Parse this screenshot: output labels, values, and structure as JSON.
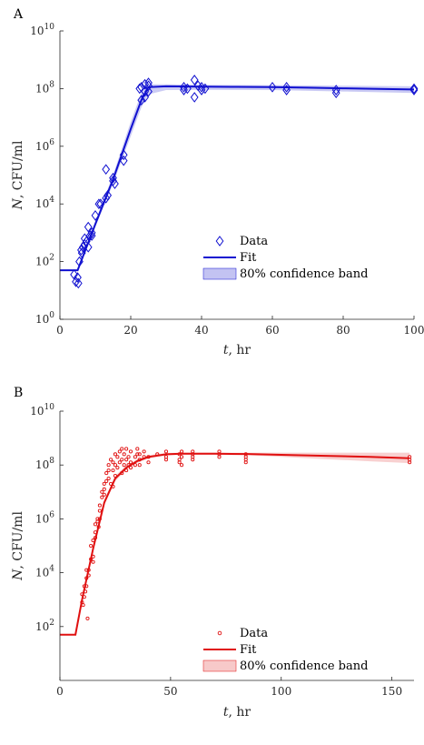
{
  "chart_data": [
    {
      "panel": "A",
      "type": "scatter",
      "color": "#1010d0",
      "band_color": "#b9b9f0",
      "marker": "diamond",
      "xlabel_var": "t",
      "xlabel_unit": ", hr",
      "ylabel_var": "N",
      "ylabel_unit": ", CFU/ml",
      "xlim": [
        0,
        100
      ],
      "ylim_log10": [
        0,
        10
      ],
      "xticks": [
        0,
        20,
        40,
        60,
        80,
        100
      ],
      "yticks_log10": [
        0,
        2,
        4,
        6,
        8,
        10
      ],
      "ytick_labels": [
        {
          "base": "10",
          "exp": "0"
        },
        {
          "base": "10",
          "exp": "2"
        },
        {
          "base": "10",
          "exp": "4"
        },
        {
          "base": "10",
          "exp": "6"
        },
        {
          "base": "10",
          "exp": "8"
        },
        {
          "base": "10",
          "exp": "10"
        }
      ],
      "legend": {
        "data": "Data",
        "fit": "Fit",
        "band": "80% confidence band",
        "placement": "bottom-right"
      },
      "data_points": {
        "x": [
          4,
          4.5,
          5,
          5.2,
          5.5,
          6,
          6.2,
          6.5,
          7,
          7,
          7.5,
          8,
          8,
          8.5,
          9,
          9,
          10,
          11,
          11.5,
          13,
          13,
          13.5,
          15,
          15,
          15.5,
          18,
          18,
          22.5,
          23,
          23,
          24,
          24,
          24,
          25,
          25,
          25,
          35,
          35,
          36,
          38,
          38,
          39,
          40,
          40,
          41,
          60,
          64,
          64,
          78,
          78,
          100,
          100
        ],
        "y": [
          1.55,
          1.3,
          1.45,
          1.25,
          2.0,
          2.4,
          2.3,
          2.5,
          2.6,
          2.8,
          2.7,
          2.5,
          3.2,
          2.9,
          2.9,
          3.0,
          3.6,
          4.0,
          4.0,
          5.2,
          4.2,
          4.3,
          4.8,
          4.9,
          4.7,
          5.5,
          5.7,
          8.0,
          7.6,
          8.05,
          7.9,
          8.15,
          7.7,
          8.1,
          7.9,
          8.2,
          7.95,
          8.05,
          8.0,
          8.3,
          7.7,
          8.1,
          7.95,
          8.05,
          8.0,
          8.05,
          7.95,
          8.05,
          7.85,
          7.95,
          7.95,
          8.0
        ]
      },
      "fit": {
        "x": [
          0,
          4,
          5,
          10,
          15,
          20,
          23,
          25,
          30,
          40,
          50,
          60,
          70,
          80,
          90,
          100
        ],
        "y": [
          1.7,
          1.7,
          1.7,
          3.3,
          4.85,
          6.6,
          7.6,
          8.05,
          8.08,
          8.07,
          8.06,
          8.05,
          8.03,
          8.01,
          7.99,
          7.97
        ]
      },
      "band": {
        "x": [
          0,
          4,
          5,
          10,
          15,
          20,
          23,
          25,
          30,
          40,
          60,
          80,
          100
        ],
        "lower": [
          1.68,
          1.68,
          1.68,
          3.2,
          4.7,
          6.35,
          7.35,
          7.8,
          7.95,
          7.96,
          7.95,
          7.9,
          7.85
        ],
        "upper": [
          1.72,
          1.72,
          1.72,
          3.4,
          5.0,
          6.85,
          7.85,
          8.15,
          8.15,
          8.13,
          8.12,
          8.1,
          8.08
        ]
      }
    },
    {
      "panel": "B",
      "type": "scatter",
      "color": "#e01010",
      "band_color": "#f6c0c0",
      "marker": "circle",
      "xlabel_var": "t",
      "xlabel_unit": ", hr",
      "ylabel_var": "N",
      "ylabel_unit": ", CFU/ml",
      "xlim": [
        0,
        160
      ],
      "ylim_log10": [
        0,
        10
      ],
      "xticks": [
        0,
        50,
        100,
        150
      ],
      "yticks_log10": [
        2,
        4,
        6,
        8,
        10
      ],
      "ytick_labels": [
        {
          "base": "10",
          "exp": "2"
        },
        {
          "base": "10",
          "exp": "4"
        },
        {
          "base": "10",
          "exp": "6"
        },
        {
          "base": "10",
          "exp": "8"
        },
        {
          "base": "10",
          "exp": "10"
        }
      ],
      "legend": {
        "data": "Data",
        "fit": "Fit",
        "band": "80% confidence band",
        "placement": "bottom-right"
      },
      "data_points": {
        "x": [
          10,
          10,
          10.5,
          11,
          11,
          11.5,
          12,
          12,
          12,
          12.5,
          13,
          13,
          14,
          14,
          15,
          15,
          15,
          16,
          16,
          16,
          17,
          17,
          17.5,
          18,
          18,
          18,
          19,
          19,
          20,
          20,
          20,
          21,
          21,
          22,
          22,
          22,
          23,
          23,
          24,
          24,
          24,
          25,
          25,
          25,
          26,
          26,
          27,
          27,
          28,
          28,
          28,
          29,
          29,
          30,
          30,
          30,
          31,
          31,
          32,
          32,
          32,
          34,
          34,
          35,
          35,
          36,
          36,
          36,
          38,
          38,
          40,
          40,
          44,
          48,
          48,
          48,
          54,
          54,
          54,
          55,
          55,
          55,
          60,
          60,
          60,
          60,
          72,
          72,
          72,
          84,
          84,
          84,
          84,
          158,
          158,
          158
        ],
        "y": [
          2.9,
          3.2,
          2.8,
          3.5,
          3.1,
          3.3,
          3.8,
          3.5,
          4.1,
          2.3,
          3.9,
          4.1,
          5.0,
          4.5,
          4.6,
          4.4,
          5.2,
          5.5,
          5.3,
          5.8,
          5.9,
          6.0,
          5.7,
          6.3,
          6.5,
          6.0,
          6.8,
          7.0,
          7.3,
          6.9,
          7.1,
          7.4,
          7.7,
          7.8,
          7.5,
          8.0,
          7.3,
          8.2,
          7.8,
          8.1,
          7.2,
          8.4,
          8.0,
          7.6,
          8.3,
          7.9,
          8.5,
          8.1,
          8.2,
          7.7,
          8.6,
          8.0,
          8.4,
          8.6,
          7.8,
          8.2,
          8.3,
          8.0,
          8.5,
          7.9,
          8.1,
          8.3,
          8.0,
          8.6,
          8.4,
          8.2,
          8.4,
          8.0,
          8.3,
          8.5,
          8.3,
          8.1,
          8.4,
          8.5,
          8.2,
          8.3,
          8.4,
          8.1,
          8.2,
          8.5,
          8.3,
          8.0,
          8.4,
          8.3,
          8.5,
          8.2,
          8.4,
          8.5,
          8.3,
          8.4,
          8.2,
          8.1,
          8.3,
          8.3,
          8.2,
          8.1
        ]
      },
      "fit": {
        "x": [
          0,
          7,
          10,
          15,
          20,
          25,
          30,
          35,
          40,
          48,
          55,
          70,
          85,
          100,
          120,
          140,
          158
        ],
        "y": [
          1.7,
          1.7,
          3.0,
          4.9,
          6.6,
          7.5,
          7.9,
          8.15,
          8.3,
          8.4,
          8.42,
          8.42,
          8.41,
          8.38,
          8.34,
          8.3,
          8.25
        ]
      },
      "band": {
        "x": [
          0,
          7,
          10,
          15,
          20,
          25,
          30,
          35,
          40,
          48,
          55,
          70,
          85,
          100,
          120,
          140,
          158
        ],
        "lower": [
          1.68,
          1.68,
          2.9,
          4.8,
          6.5,
          7.4,
          7.82,
          8.08,
          8.24,
          8.35,
          8.38,
          8.38,
          8.36,
          8.3,
          8.22,
          8.14,
          8.07
        ],
        "upper": [
          1.72,
          1.72,
          3.1,
          5.0,
          6.7,
          7.6,
          7.98,
          8.22,
          8.36,
          8.45,
          8.46,
          8.46,
          8.46,
          8.46,
          8.46,
          8.46,
          8.46
        ]
      }
    }
  ]
}
